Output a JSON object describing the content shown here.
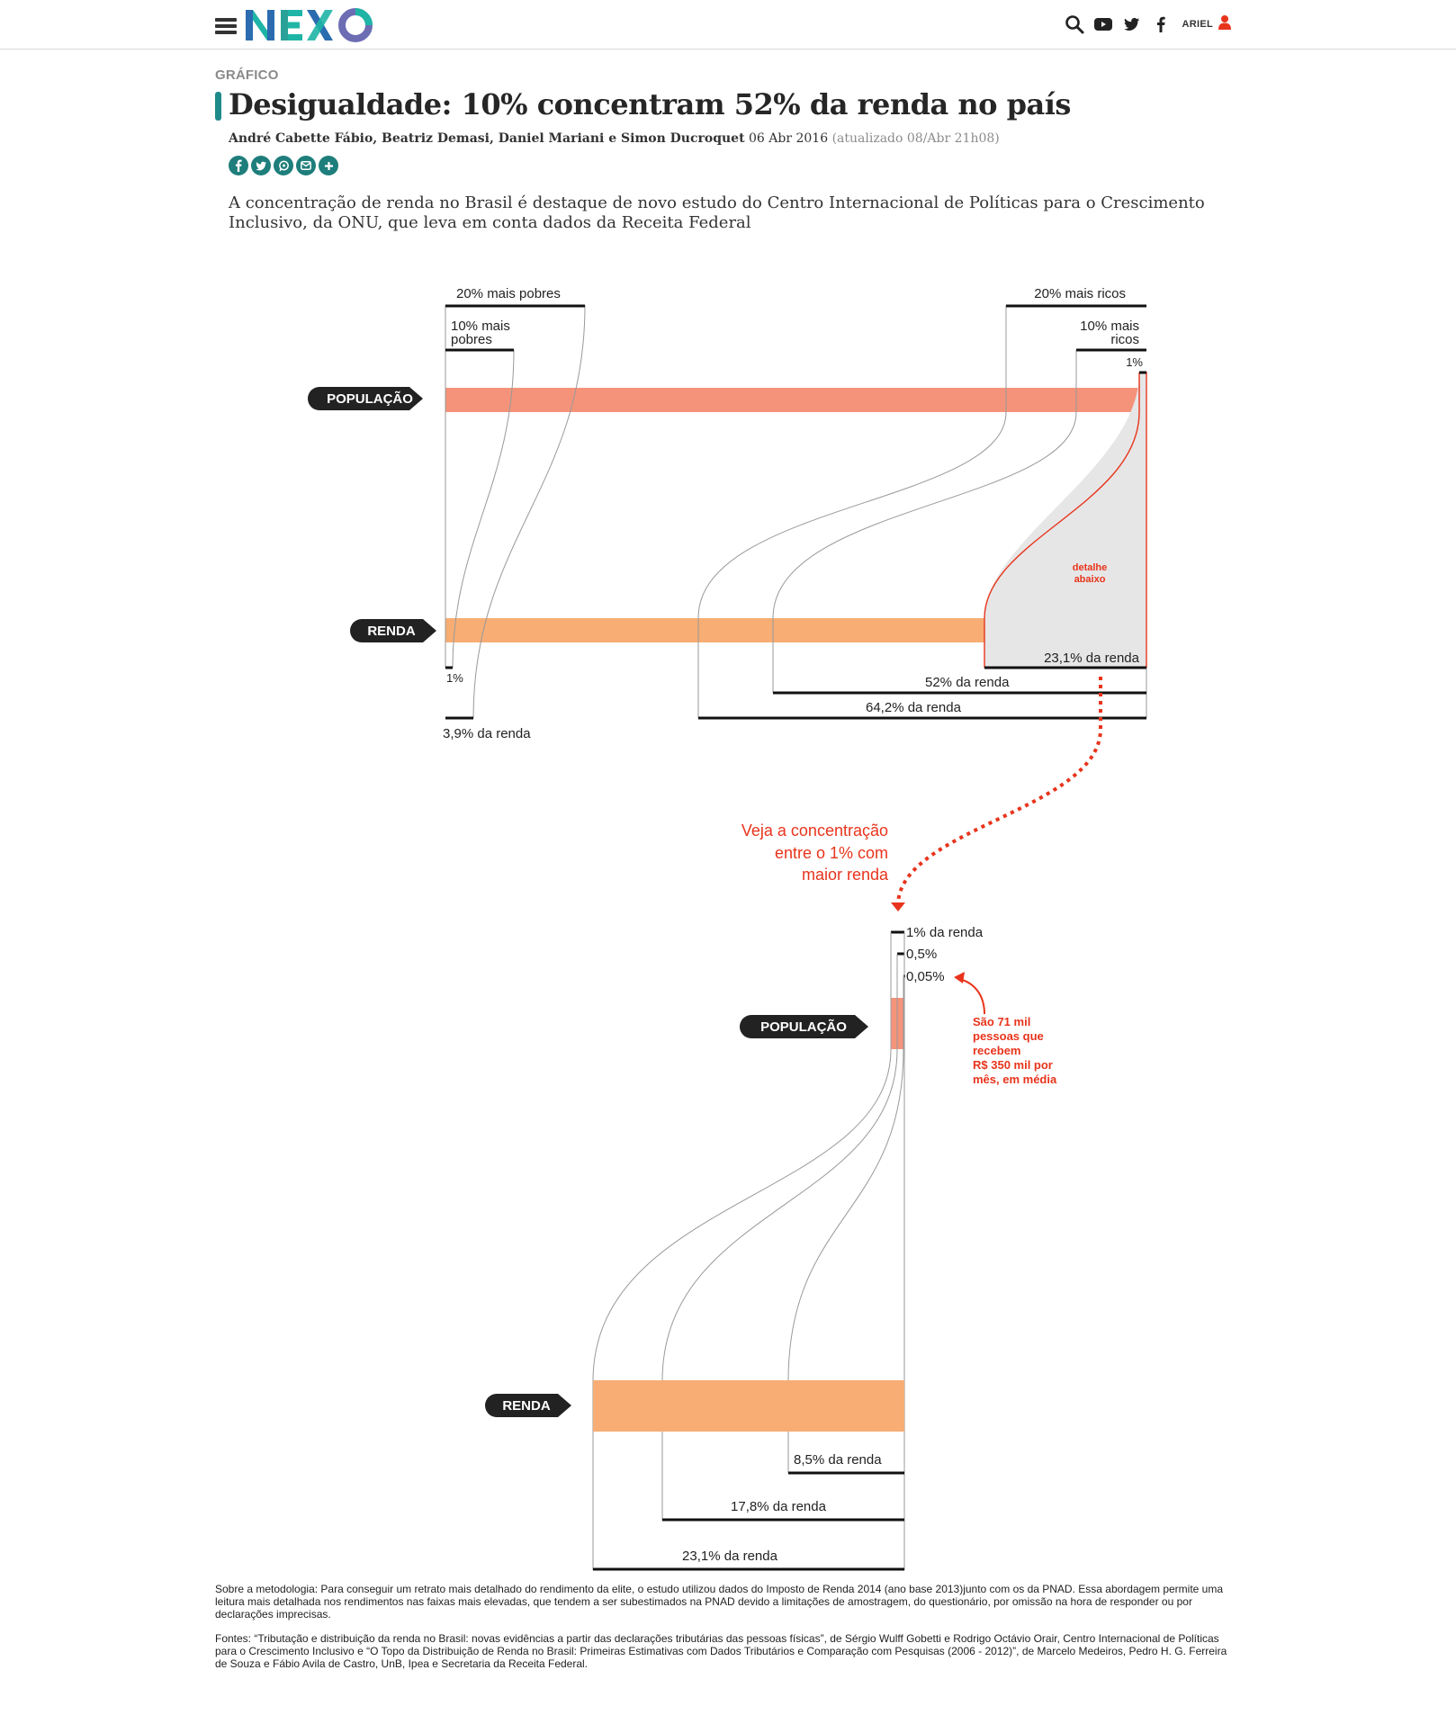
{
  "header": {
    "user_name": "ARIEL",
    "icons": [
      "menu-icon",
      "nexo-logo",
      "search-icon",
      "youtube-icon",
      "twitter-icon",
      "facebook-icon",
      "user-icon"
    ],
    "brand_colors": [
      "#2b6cb0",
      "#1fb5a6",
      "#6d6db4"
    ]
  },
  "article": {
    "kicker": "GRÁFICO",
    "title": "Desigualdade: 10% concentram 52% da renda no país",
    "authors": "André Cabette Fábio, Beatriz Demasi, Daniel Mariani e Simon Ducroquet",
    "date": "06 Abr 2016",
    "updated": "(atualizado 08/Abr 21h08)",
    "share_icons": [
      "facebook-icon",
      "twitter-icon",
      "whatsapp-icon",
      "email-icon",
      "plus-icon"
    ],
    "lede": "A concentração de renda no Brasil é destaque de novo estudo do Centro Internacional de Políticas para o Crescimento Inclusivo, da ONU, que leva em conta dados da Receita Federal"
  },
  "chart_data": {
    "type": "other",
    "colors": {
      "population": "#f4937a",
      "income": "#f7ad74",
      "highlight": "#e8341c",
      "detail_fill": "#e6e6e6",
      "tag": "#222222"
    },
    "overview": {
      "population_label": "POPULAÇÃO",
      "income_label": "RENDA",
      "groups": [
        {
          "label": "20% mais pobres",
          "population_share": 20,
          "income_share": 3.9,
          "income_label": "3,9% da renda"
        },
        {
          "label": "10% mais pobres",
          "population_share": 10,
          "income_share": 1,
          "income_label": "1%"
        },
        {
          "label": "20% mais ricos",
          "population_share": 20,
          "income_share": 64.2,
          "income_label": "64,2% da renda"
        },
        {
          "label": "10% mais ricos",
          "population_share": 10,
          "income_share": 52,
          "income_label": "52% da renda"
        },
        {
          "label": "1%",
          "population_share": 1,
          "income_share": 23.1,
          "income_label": "23,1% da renda"
        }
      ],
      "detail_note": "detalhe abaixo",
      "callout": "Veja a concentração entre o 1% com maior renda"
    },
    "detail": {
      "population_label": "POPULAÇÃO",
      "income_label": "RENDA",
      "groups": [
        {
          "label": "1% da renda",
          "population_share": 1,
          "income_share": 23.1,
          "income_label": "23,1% da renda"
        },
        {
          "label": "0,5%",
          "population_share": 0.5,
          "income_share": 17.8,
          "income_label": "17,8% da renda"
        },
        {
          "label": "0,05%",
          "population_share": 0.05,
          "income_share": 8.5,
          "income_label": "8,5% da renda"
        }
      ],
      "annotation": "São 71 mil pessoas que recebem R$ 350 mil por mês, em média"
    }
  },
  "footnotes": {
    "methodology": "Sobre a metodologia: Para conseguir um retrato mais detalhado do rendimento da elite, o estudo utilizou dados do Imposto de Renda 2014 (ano base 2013)junto com os da PNAD. Essa abordagem permite uma leitura mais detalhada nos rendimentos nas faixas mais elevadas, que tendem a ser subestimados na PNAD devido a limitações de amostragem, do questionário, por omissão na hora de responder ou por declarações imprecisas.",
    "sources": "Fontes: “Tributação e distribuição da renda no Brasil: novas evidências a partir das declarações tributárias das pessoas físicas”, de Sérgio Wulff Gobetti e Rodrigo Octávio Orair, Centro Internacional de Políticas para o Crescimento Inclusivo e “O Topo da Distribuição de Renda no Brasil: Primeiras Estimativas com Dados Tributários e Comparação com Pesquisas (2006 - 2012)”, de Marcelo Medeiros, Pedro H. G. Ferreira de Souza e Fábio Avila de Castro, UnB, Ipea e Secretaria da Receita Federal."
  }
}
